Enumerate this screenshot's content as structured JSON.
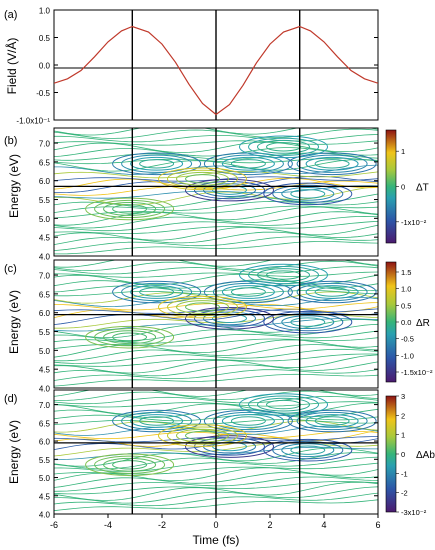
{
  "figure": {
    "x_axis": {
      "label": "Time (fs)",
      "range": [
        -6,
        6
      ],
      "ticks": [
        -6,
        -4,
        -2,
        0,
        2,
        4,
        6
      ]
    },
    "vertical_markers": [
      -3.1,
      0,
      3.1
    ]
  },
  "chart_data": [
    {
      "panel": "(a)",
      "type": "line",
      "ylabel": "Field (V/Å)",
      "ylim": [
        -1.0,
        1.0
      ],
      "y_ticks": [
        "1.0",
        "0.5",
        "0.0",
        "-0.5",
        "-1.0x10⁻¹"
      ],
      "series": [
        {
          "color": "#c0392b",
          "x": [
            -6,
            -5.5,
            -5,
            -4.5,
            -4,
            -3.5,
            -3.1,
            -2.5,
            -2,
            -1.5,
            -1,
            -0.5,
            0,
            0.5,
            1,
            1.5,
            2,
            2.5,
            3.1,
            3.5,
            4,
            4.5,
            5,
            5.5,
            6
          ],
          "y": [
            -0.33,
            -0.25,
            -0.1,
            0.15,
            0.42,
            0.62,
            0.7,
            0.6,
            0.38,
            0.05,
            -0.35,
            -0.7,
            -0.9,
            -0.72,
            -0.37,
            0.04,
            0.38,
            0.6,
            0.7,
            0.62,
            0.42,
            0.15,
            -0.1,
            -0.25,
            -0.33
          ]
        }
      ]
    },
    {
      "panel": "(b)",
      "type": "heatmap",
      "ylabel": "Energy (eV)",
      "ylim": [
        4.0,
        7.4
      ],
      "y_ticks": [
        "7.0",
        "6.5",
        "6.0",
        "5.5",
        "5.0",
        "4.5",
        "4.0"
      ],
      "h_line": 5.85,
      "colorbar": {
        "label": "ΔT",
        "ticks": [
          "1",
          "0",
          "-1x10⁻²"
        ],
        "values": [
          1,
          0,
          -1
        ],
        "range": [
          -1.6,
          1.6
        ]
      }
    },
    {
      "panel": "(c)",
      "type": "heatmap",
      "ylabel": "Energy (eV)",
      "ylim": [
        4.0,
        7.4
      ],
      "y_ticks": [
        "7.0",
        "6.5",
        "6.0",
        "5.5",
        "5.0",
        "4.5",
        "4.0"
      ],
      "h_line": 5.95,
      "colorbar": {
        "label": "ΔR",
        "ticks": [
          "1.5",
          "1.0",
          "0.5",
          "0.0",
          "-0.5",
          "-1.0",
          "-1.5x10⁻²"
        ],
        "values": [
          1.5,
          1.0,
          0.5,
          0.0,
          -0.5,
          -1.0,
          -1.5
        ],
        "range": [
          -1.8,
          1.8
        ]
      }
    },
    {
      "panel": "(d)",
      "type": "heatmap",
      "ylabel": "Energy (eV)",
      "ylim": [
        4.0,
        7.4
      ],
      "y_ticks": [
        "7.0",
        "6.5",
        "6.0",
        "5.5",
        "5.0",
        "4.5",
        "4.0"
      ],
      "h_line": 5.95,
      "colorbar": {
        "label": "ΔAb",
        "ticks": [
          "3",
          "2",
          "1",
          "0",
          "-1",
          "-2",
          "-3x10⁻²"
        ],
        "values": [
          3,
          2,
          1,
          0,
          -1,
          -2,
          -3
        ],
        "range": [
          -3,
          3
        ]
      }
    }
  ]
}
